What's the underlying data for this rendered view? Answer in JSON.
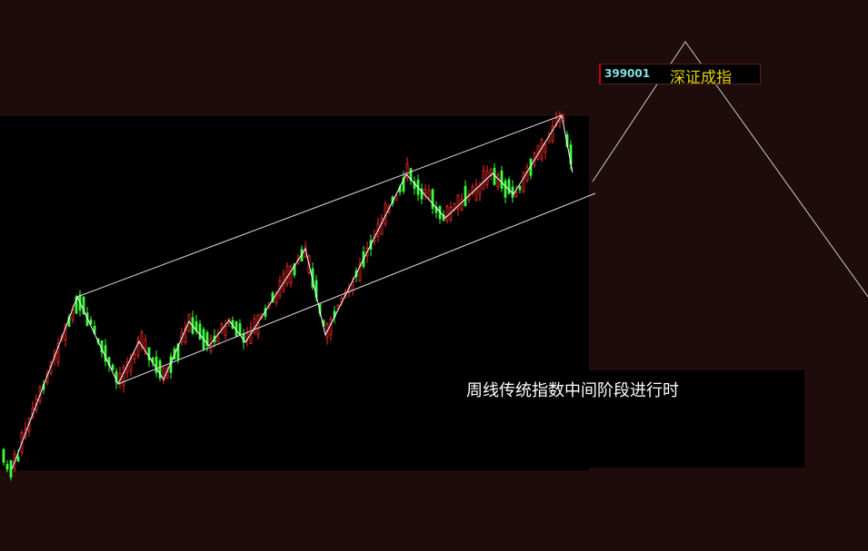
{
  "ticker": {
    "code": "399001",
    "name": "深证成指"
  },
  "annotation": "周线传统指数中间阶段进行时"
}
